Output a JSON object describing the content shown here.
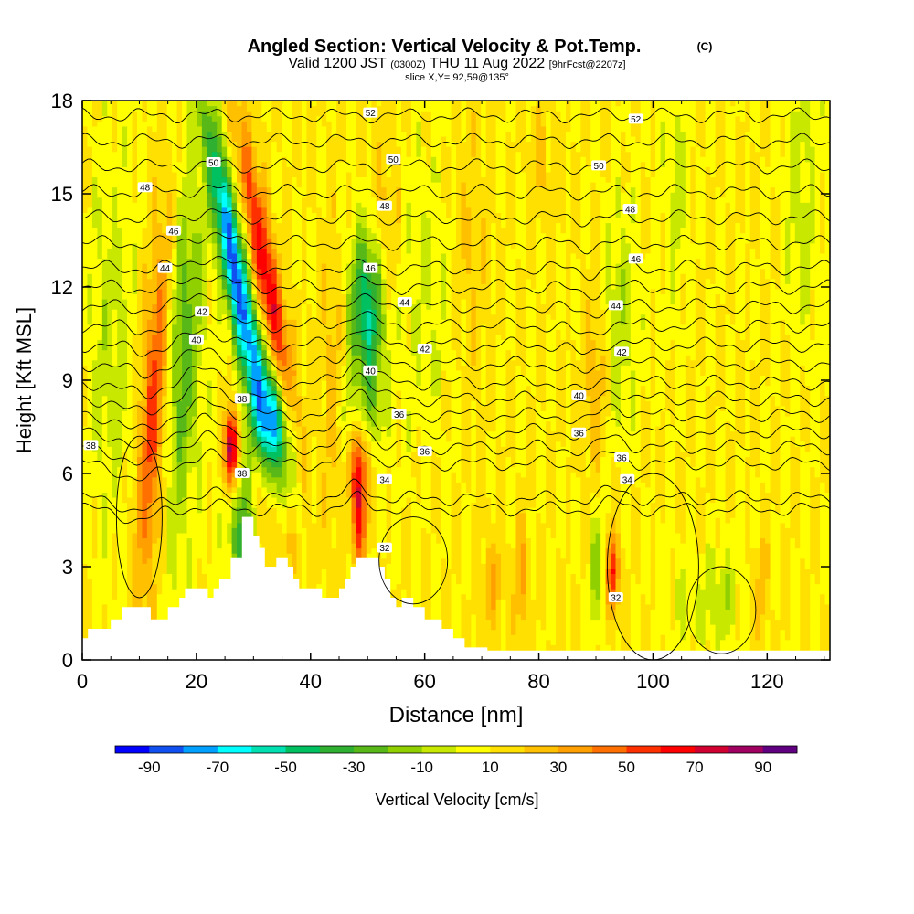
{
  "chart_data": {
    "type": "heatmap",
    "title": "Angled Section: Vertical Velocity & Pot.Temp.",
    "title_suffix": "(C)",
    "subtitle_main": "Valid 1200 JST",
    "subtitle_z": "(0300Z)",
    "subtitle_date": "THU 11 Aug 2022",
    "subtitle_fcst": "[9hrFcst@2207z]",
    "slice_info": "slice X,Y= 92,59@135°",
    "xlabel": "Distance [nm]",
    "ylabel": "Height [Kft MSL]",
    "xlim": [
      0,
      131
    ],
    "ylim": [
      0,
      18
    ],
    "xticks": [
      "0",
      "20",
      "40",
      "60",
      "80",
      "100",
      "120"
    ],
    "yticks": [
      "0",
      "3",
      "6",
      "9",
      "12",
      "15",
      "18"
    ],
    "colorbar": {
      "label": "Vertical Velocity [cm/s]",
      "tick_labels": [
        "-90",
        "-70",
        "-50",
        "-30",
        "-10",
        "10",
        "30",
        "50",
        "70",
        "90"
      ],
      "bin_edges": [
        -100,
        -90,
        -80,
        -70,
        -60,
        -50,
        -40,
        -30,
        -20,
        -10,
        0,
        10,
        20,
        30,
        40,
        50,
        60,
        70,
        80,
        90,
        100
      ],
      "colors": [
        "#0000ff",
        "#1050f0",
        "#00a0ff",
        "#00ffff",
        "#00e0b0",
        "#00c060",
        "#30b030",
        "#58b818",
        "#90d000",
        "#c8e800",
        "#ffff00",
        "#ffe000",
        "#ffc000",
        "#ffa000",
        "#ff7000",
        "#ff3000",
        "#ff0000",
        "#d00030",
        "#a00060",
        "#600080"
      ]
    },
    "isentropes": {
      "series_labels": [
        "32",
        "34",
        "36",
        "38",
        "40",
        "42",
        "44",
        "46",
        "48",
        "50",
        "52"
      ],
      "labels": [
        {
          "text": "52",
          "x": 50.5,
          "y": 17.6
        },
        {
          "text": "52",
          "x": 97,
          "y": 17.4
        },
        {
          "text": "50",
          "x": 23,
          "y": 16.0
        },
        {
          "text": "50",
          "x": 54.5,
          "y": 16.1
        },
        {
          "text": "50",
          "x": 90.5,
          "y": 15.9
        },
        {
          "text": "48",
          "x": 11,
          "y": 15.2
        },
        {
          "text": "48",
          "x": 53,
          "y": 14.6
        },
        {
          "text": "48",
          "x": 96,
          "y": 14.5
        },
        {
          "text": "46",
          "x": 16,
          "y": 13.8
        },
        {
          "text": "46",
          "x": 50.5,
          "y": 12.6
        },
        {
          "text": "46",
          "x": 97,
          "y": 12.9
        },
        {
          "text": "44",
          "x": 14.5,
          "y": 12.6
        },
        {
          "text": "44",
          "x": 56.5,
          "y": 11.5
        },
        {
          "text": "44",
          "x": 93.5,
          "y": 11.4
        },
        {
          "text": "42",
          "x": 21,
          "y": 11.2
        },
        {
          "text": "42",
          "x": 60,
          "y": 10.0
        },
        {
          "text": "42",
          "x": 94.5,
          "y": 9.9
        },
        {
          "text": "40",
          "x": 20,
          "y": 10.3
        },
        {
          "text": "40",
          "x": 50.5,
          "y": 9.3
        },
        {
          "text": "40",
          "x": 87,
          "y": 8.5
        },
        {
          "text": "38",
          "x": 28,
          "y": 8.4
        },
        {
          "text": "38",
          "x": 1.5,
          "y": 6.9
        },
        {
          "text": "38",
          "x": 28,
          "y": 6.0
        },
        {
          "text": "36",
          "x": 55.5,
          "y": 7.9
        },
        {
          "text": "36",
          "x": 60,
          "y": 6.7
        },
        {
          "text": "36",
          "x": 87,
          "y": 7.3
        },
        {
          "text": "36",
          "x": 94.5,
          "y": 6.5
        },
        {
          "text": "34",
          "x": 53,
          "y": 5.8
        },
        {
          "text": "34",
          "x": 95.5,
          "y": 5.8
        },
        {
          "text": "32",
          "x": 53,
          "y": 3.6
        },
        {
          "text": "32",
          "x": 93.5,
          "y": 2.0
        }
      ]
    }
  }
}
